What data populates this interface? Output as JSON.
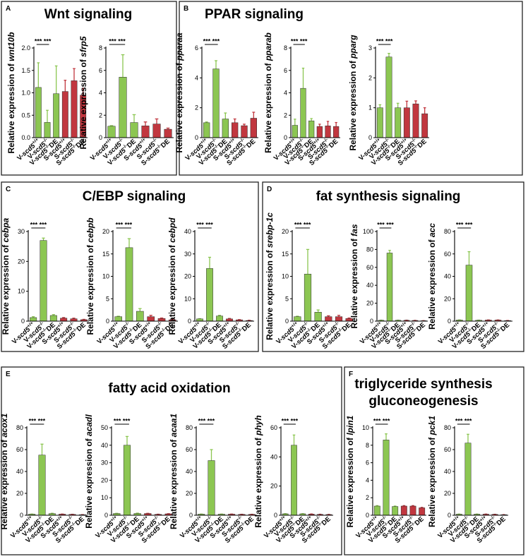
{
  "categories": [
    "V-scd5+/+",
    "V-scd5-/-",
    "V-scd5-/-DE",
    "S-scd5+/+",
    "S-scd5-/-",
    "S-scd5-/-DE"
  ],
  "category_parts": [
    {
      "pre": "V-",
      "gene": "scd5",
      "sup": "+/+",
      "post": ""
    },
    {
      "pre": "V-",
      "gene": "scd5",
      "sup": "-/-",
      "post": ""
    },
    {
      "pre": "V-",
      "gene": "scd5",
      "sup": "-/-",
      "post": "DE"
    },
    {
      "pre": "S-",
      "gene": "scd5",
      "sup": "+/+",
      "post": ""
    },
    {
      "pre": "S-",
      "gene": "scd5",
      "sup": "-/-",
      "post": ""
    },
    {
      "pre": "S-",
      "gene": "scd5",
      "sup": "-/-",
      "post": "DE"
    }
  ],
  "ylabel_prefix": "Relative expression of ",
  "significance": "*** ***",
  "colors": {
    "V": "#8cc652",
    "S": "#c1373f",
    "frame": "#222222"
  },
  "panels": [
    {
      "letter": "A",
      "title": [
        "Wnt signaling"
      ]
    },
    {
      "letter": "B",
      "title": [
        "PPAR signaling"
      ]
    },
    {
      "letter": "C",
      "title": [
        "C/EBP signaling"
      ]
    },
    {
      "letter": "D",
      "title": [
        "fat synthesis signaling"
      ]
    },
    {
      "letter": "E",
      "title": [
        "fatty acid oxidation"
      ]
    },
    {
      "letter": "F",
      "title": [
        "triglyceride synthesis",
        "gluconeogenesis"
      ]
    }
  ],
  "chart_data": [
    {
      "type": "bar",
      "panel": "A",
      "gene": "wnt10b",
      "ylim": [
        0,
        2.0
      ],
      "ticks": [
        0.0,
        0.5,
        1.0,
        1.5,
        2.0
      ],
      "tick_labels": [
        "0.0",
        "0.5",
        "1.0",
        "1.5",
        "2.0"
      ],
      "values": [
        1.12,
        0.34,
        0.98,
        1.03,
        1.27,
        0.95
      ],
      "errors": [
        0.55,
        0.27,
        0.62,
        0.25,
        0.27,
        0.15
      ]
    },
    {
      "type": "bar",
      "panel": "A",
      "gene": "sfrp5",
      "ylim": [
        0,
        8
      ],
      "ticks": [
        0,
        2,
        4,
        6,
        8
      ],
      "tick_labels": [
        "0",
        "2",
        "4",
        "6",
        "8"
      ],
      "values": [
        1.02,
        5.4,
        1.35,
        1.05,
        1.22,
        0.75
      ],
      "errors": [
        0.05,
        2.0,
        0.7,
        0.35,
        0.45,
        0.1
      ]
    },
    {
      "type": "bar",
      "panel": "B",
      "gene": "pparaa",
      "ylim": [
        0,
        6
      ],
      "ticks": [
        0,
        2,
        4,
        6
      ],
      "tick_labels": [
        "0",
        "2",
        "4",
        "6"
      ],
      "values": [
        1.0,
        4.6,
        1.25,
        1.0,
        0.8,
        1.3
      ],
      "errors": [
        0.05,
        0.55,
        0.4,
        0.25,
        0.1,
        0.4
      ]
    },
    {
      "type": "bar",
      "panel": "B",
      "gene": "pparab",
      "ylim": [
        0,
        8
      ],
      "ticks": [
        0,
        2,
        4,
        6,
        8
      ],
      "tick_labels": [
        "0",
        "2",
        "4",
        "6",
        "8"
      ],
      "values": [
        1.1,
        4.4,
        1.5,
        1.0,
        1.05,
        1.0
      ],
      "errors": [
        0.55,
        1.8,
        0.2,
        0.2,
        0.4,
        0.35
      ]
    },
    {
      "type": "bar",
      "panel": "B",
      "gene": "pparg",
      "ylim": [
        0,
        3
      ],
      "ticks": [
        0,
        1,
        2,
        3
      ],
      "tick_labels": [
        "0",
        "1",
        "2",
        "3"
      ],
      "values": [
        1.0,
        2.7,
        1.0,
        1.0,
        1.13,
        0.8
      ],
      "errors": [
        0.1,
        0.12,
        0.15,
        0.22,
        0.1,
        0.2
      ]
    },
    {
      "type": "bar",
      "panel": "C",
      "gene": "cebpa",
      "ylim": [
        0,
        30
      ],
      "ticks": [
        0,
        10,
        20,
        30
      ],
      "tick_labels": [
        "0",
        "10",
        "20",
        "30"
      ],
      "values": [
        1.2,
        27.0,
        1.9,
        1.0,
        0.8,
        0.5
      ],
      "errors": [
        0.3,
        0.8,
        0.3,
        0.2,
        0.2,
        0.1
      ]
    },
    {
      "type": "bar",
      "panel": "C",
      "gene": "cebpb",
      "ylim": [
        0,
        20
      ],
      "ticks": [
        0,
        5,
        10,
        15,
        20
      ],
      "tick_labels": [
        "0",
        "5",
        "10",
        "15",
        "20"
      ],
      "values": [
        1.0,
        16.4,
        2.2,
        1.0,
        0.6,
        0.3
      ],
      "errors": [
        0.1,
        2.0,
        0.6,
        0.3,
        0.1,
        0.1
      ]
    },
    {
      "type": "bar",
      "panel": "C",
      "gene": "cebpd",
      "ylim": [
        0,
        40
      ],
      "ticks": [
        0,
        10,
        20,
        30,
        40
      ],
      "tick_labels": [
        "0",
        "10",
        "20",
        "30",
        "40"
      ],
      "values": [
        1.0,
        23.5,
        2.3,
        1.0,
        0.6,
        0.3
      ],
      "errors": [
        0.1,
        5.0,
        0.3,
        0.2,
        0.1,
        0.1
      ]
    },
    {
      "type": "bar",
      "panel": "D",
      "gene": "srebp-1c",
      "ylim": [
        0,
        20
      ],
      "ticks": [
        0,
        5,
        10,
        15,
        20
      ],
      "tick_labels": [
        "0",
        "5",
        "10",
        "15",
        "20"
      ],
      "values": [
        1.0,
        10.5,
        2.0,
        1.0,
        1.0,
        0.6
      ],
      "errors": [
        0.1,
        5.5,
        0.5,
        0.2,
        0.3,
        0.1
      ]
    },
    {
      "type": "bar",
      "panel": "D",
      "gene": "fas",
      "ylim": [
        0,
        100
      ],
      "ticks": [
        0,
        20,
        40,
        60,
        80,
        100
      ],
      "tick_labels": [
        "0",
        "20",
        "40",
        "60",
        "80",
        "100"
      ],
      "values": [
        1.0,
        76.0,
        1.0,
        1.0,
        0.8,
        0.5
      ],
      "errors": [
        0.1,
        3.0,
        0.1,
        0.1,
        0.1,
        0.1
      ]
    },
    {
      "type": "bar",
      "panel": "D",
      "gene": "acc",
      "ylim": [
        0,
        80
      ],
      "ticks": [
        0,
        20,
        40,
        60,
        80
      ],
      "tick_labels": [
        "0",
        "20",
        "40",
        "60",
        "80"
      ],
      "values": [
        1.0,
        50.0,
        0.8,
        1.0,
        1.0,
        0.5
      ],
      "errors": [
        0.1,
        12.0,
        0.1,
        0.1,
        0.1,
        0.1
      ]
    },
    {
      "type": "bar",
      "panel": "E",
      "gene": "acox1",
      "ylim": [
        0,
        80
      ],
      "ticks": [
        0,
        20,
        40,
        60,
        80
      ],
      "tick_labels": [
        "0",
        "20",
        "40",
        "60",
        "80"
      ],
      "values": [
        1.0,
        55.0,
        1.5,
        1.0,
        0.8,
        0.5
      ],
      "errors": [
        0.1,
        10.0,
        0.3,
        0.1,
        0.1,
        0.1
      ]
    },
    {
      "type": "bar",
      "panel": "E",
      "gene": "acadl",
      "ylim": [
        0,
        50
      ],
      "ticks": [
        0,
        10,
        20,
        30,
        40,
        50
      ],
      "tick_labels": [
        "0",
        "10",
        "20",
        "30",
        "40",
        "50"
      ],
      "values": [
        1.0,
        40.0,
        1.0,
        1.0,
        0.5,
        0.8
      ],
      "errors": [
        0.1,
        5.0,
        0.2,
        0.1,
        0.1,
        0.1
      ]
    },
    {
      "type": "bar",
      "panel": "E",
      "gene": "acaa1",
      "ylim": [
        0,
        80
      ],
      "ticks": [
        0,
        20,
        40,
        60,
        80
      ],
      "tick_labels": [
        "0",
        "20",
        "40",
        "60",
        "80"
      ],
      "values": [
        1.0,
        50.0,
        1.0,
        1.0,
        0.8,
        0.8
      ],
      "errors": [
        0.1,
        10.0,
        0.1,
        0.1,
        0.1,
        0.1
      ]
    },
    {
      "type": "bar",
      "panel": "E",
      "gene": "phyh",
      "ylim": [
        0,
        60
      ],
      "ticks": [
        0,
        20,
        40,
        60
      ],
      "tick_labels": [
        "0",
        "20",
        "40",
        "60"
      ],
      "values": [
        1.0,
        48.0,
        1.0,
        0.8,
        0.6,
        0.5
      ],
      "errors": [
        0.1,
        7.0,
        0.1,
        0.1,
        0.1,
        0.1
      ]
    },
    {
      "type": "bar",
      "panel": "F",
      "gene": "lpin1",
      "ylim": [
        0,
        10
      ],
      "ticks": [
        0,
        2,
        4,
        6,
        8,
        10
      ],
      "tick_labels": [
        "0",
        "2",
        "4",
        "6",
        "8",
        "10"
      ],
      "values": [
        1.05,
        8.6,
        1.0,
        1.05,
        1.05,
        0.85
      ],
      "errors": [
        0.05,
        0.7,
        0.05,
        0.05,
        0.05,
        0.05
      ]
    },
    {
      "type": "bar",
      "panel": "F",
      "gene": "pck1",
      "ylim": [
        0,
        80
      ],
      "ticks": [
        0,
        20,
        40,
        60,
        80
      ],
      "tick_labels": [
        "0",
        "20",
        "40",
        "60",
        "80"
      ],
      "values": [
        1.0,
        66.0,
        1.0,
        1.0,
        0.8,
        0.5
      ],
      "errors": [
        0.1,
        8.0,
        0.1,
        0.1,
        0.1,
        0.1
      ]
    }
  ]
}
